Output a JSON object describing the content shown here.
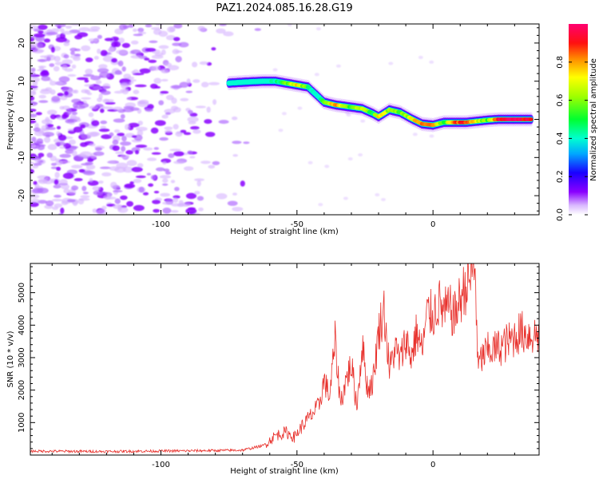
{
  "title": "PAZ1.2024.085.16.28.G19",
  "chart_data": [
    {
      "type": "heatmap",
      "xlabel": "Height of straight line (km)",
      "ylabel": "Frequency (Hz)",
      "xlim": [
        -148,
        39
      ],
      "ylim": [
        -25,
        25
      ],
      "xticks": [
        -100,
        -50,
        0
      ],
      "yticks": [
        -20,
        -10,
        0,
        10,
        20
      ],
      "noise_region": {
        "x_range": [
          -148,
          -60
        ],
        "y_range": [
          -25,
          25
        ]
      },
      "ridge": [
        {
          "x": -75,
          "y": 9.5,
          "amp": 0.25
        },
        {
          "x": -68,
          "y": 9.8,
          "amp": 0.3
        },
        {
          "x": -62,
          "y": 10.0,
          "amp": 0.35
        },
        {
          "x": -58,
          "y": 10.0,
          "amp": 0.4
        },
        {
          "x": -54,
          "y": 9.5,
          "amp": 0.55
        },
        {
          "x": -50,
          "y": 9.0,
          "amp": 0.75
        },
        {
          "x": -46,
          "y": 8.5,
          "amp": 0.5
        },
        {
          "x": -43,
          "y": 6.5,
          "amp": 0.35
        },
        {
          "x": -40,
          "y": 4.5,
          "amp": 0.55
        },
        {
          "x": -36,
          "y": 3.8,
          "amp": 0.85
        },
        {
          "x": -30,
          "y": 3.2,
          "amp": 0.5
        },
        {
          "x": -26,
          "y": 2.8,
          "amp": 0.7
        },
        {
          "x": -22,
          "y": 1.5,
          "amp": 0.45
        },
        {
          "x": -20,
          "y": 0.7,
          "amp": 0.8
        },
        {
          "x": -16,
          "y": 2.5,
          "amp": 0.6
        },
        {
          "x": -12,
          "y": 1.8,
          "amp": 0.55
        },
        {
          "x": -8,
          "y": 0.2,
          "amp": 0.7
        },
        {
          "x": -4,
          "y": -1.2,
          "amp": 0.85
        },
        {
          "x": 0,
          "y": -1.5,
          "amp": 0.8
        },
        {
          "x": 4,
          "y": -0.8,
          "amp": 0.5
        },
        {
          "x": 8,
          "y": -0.8,
          "amp": 0.85
        },
        {
          "x": 12,
          "y": -0.8,
          "amp": 0.9
        },
        {
          "x": 16,
          "y": -0.5,
          "amp": 0.7
        },
        {
          "x": 20,
          "y": -0.2,
          "amp": 0.55
        },
        {
          "x": 24,
          "y": 0.0,
          "amp": 0.95
        },
        {
          "x": 30,
          "y": 0.0,
          "amp": 0.98
        },
        {
          "x": 36,
          "y": 0.0,
          "amp": 0.9
        }
      ],
      "colorbar": {
        "label": "Normalized spectral amplitude",
        "range": [
          0,
          1
        ],
        "ticks": [
          0.0,
          0.2,
          0.4,
          0.6,
          0.8
        ],
        "colors": [
          "#ffffff",
          "#8a00ff",
          "#0000ff",
          "#00d8ff",
          "#00ff00",
          "#ffff00",
          "#ff3300",
          "#ff0080"
        ]
      }
    },
    {
      "type": "line",
      "xlabel": "Height of straight line (km)",
      "ylabel": "SNR (10 * v/v)",
      "xlim": [
        -148,
        39
      ],
      "ylim": [
        0,
        5900
      ],
      "xticks": [
        -100,
        -50,
        0
      ],
      "yticks": [
        1000,
        2000,
        3000,
        4000,
        5000
      ],
      "color": "#e8312c",
      "series": [
        {
          "x": [
            -148,
            -120,
            -90,
            -70,
            -62,
            -58,
            -54,
            -51,
            -48,
            -45,
            -42,
            -40,
            -38,
            -36,
            -34,
            -32,
            -30,
            -28,
            -26,
            -24,
            -22,
            -20,
            -18,
            -16,
            -14,
            -12,
            -10,
            -8,
            -6,
            -4,
            -2,
            0,
            2,
            4,
            6,
            8,
            10,
            12,
            14,
            15.5,
            16.5,
            18,
            20,
            24,
            28,
            32,
            36,
            39
          ],
          "y": [
            120,
            110,
            130,
            150,
            300,
            600,
            700,
            550,
            900,
            1200,
            1500,
            2300,
            1800,
            3500,
            1600,
            2300,
            2800,
            1500,
            3400,
            2000,
            2300,
            3800,
            4500,
            2600,
            3300,
            2900,
            3600,
            3000,
            3800,
            3200,
            4400,
            4300,
            4700,
            4400,
            4500,
            4300,
            4800,
            5200,
            5500,
            5800,
            2700,
            3000,
            3200,
            3300,
            3500,
            3800,
            3700,
            3700
          ]
        }
      ]
    }
  ]
}
